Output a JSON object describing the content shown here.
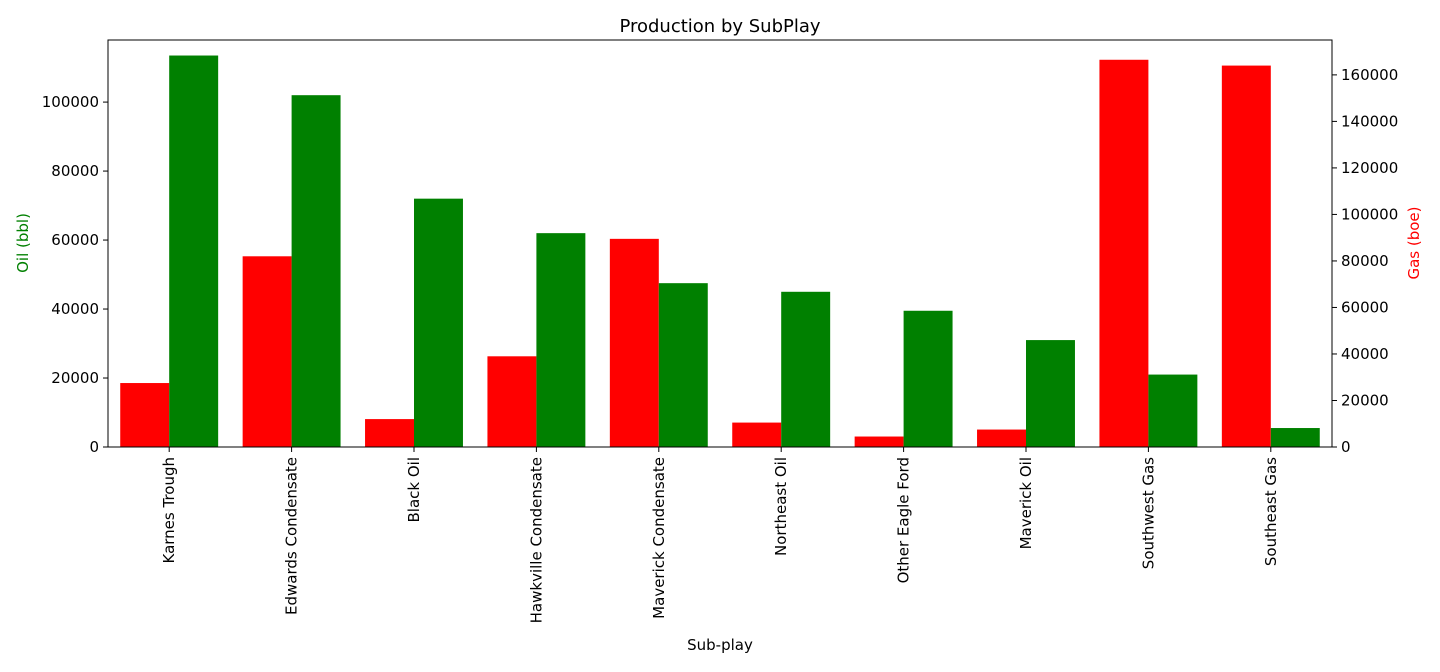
{
  "chart_data": {
    "type": "bar",
    "title": "Production by SubPlay",
    "xlabel": "Sub-play",
    "ylabel_left": "Oil (bbl)",
    "ylabel_right": "Gas (boe)",
    "categories": [
      "Karnes Trough",
      "Edwards Condensate",
      "Black Oil",
      "Hawkville Condensate",
      "Maverick Condensate",
      "Northeast Oil",
      "Other Eagle Ford",
      "Maverick Oil",
      "Southwest Gas",
      "Southeast Gas"
    ],
    "ylim_left": [
      0,
      118000
    ],
    "ylim_right": [
      0,
      175000
    ],
    "yticks_left": [
      0,
      20000,
      40000,
      60000,
      80000,
      100000
    ],
    "yticks_right": [
      0,
      20000,
      40000,
      60000,
      80000,
      100000,
      120000,
      140000,
      160000
    ],
    "series": [
      {
        "name": "Gas (boe)",
        "axis": "right",
        "color": "#ff0000",
        "values": [
          27500,
          82000,
          12000,
          39000,
          89500,
          10500,
          4500,
          7500,
          166500,
          164000
        ]
      },
      {
        "name": "Oil (bbl)",
        "axis": "left",
        "color": "#008000",
        "values": [
          113500,
          102000,
          72000,
          62000,
          47500,
          45000,
          39500,
          31000,
          21000,
          5500
        ]
      }
    ],
    "legend": "none",
    "grid": false
  }
}
